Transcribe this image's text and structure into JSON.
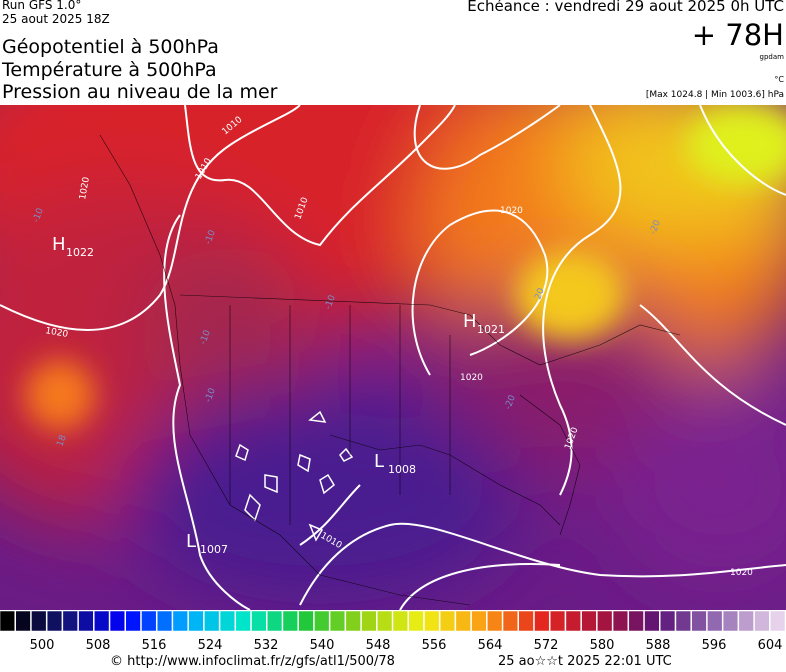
{
  "header": {
    "run": "Run GFS 1.0°",
    "run_date": "25 aout 2025 18Z",
    "titles": [
      "Géopotentiel à 500hPa",
      "Température à 500hPa",
      "Pression au niveau de la mer"
    ],
    "echeance": "Echéance : vendredi 29 aout 2025 0h UTC",
    "lead": "+ 78H",
    "unit_geo": "gpdam",
    "unit_temp": "°C",
    "extremes": "[Max 1024.8 | Min 1003.6] hPa"
  },
  "map": {
    "centers": [
      {
        "letter": "H",
        "value": 1022
      },
      {
        "letter": "H",
        "value": 1021
      },
      {
        "letter": "L",
        "value": 1008
      },
      {
        "letter": "L",
        "value": 1007
      }
    ],
    "isobar_labels": [
      "1010",
      "1010",
      "1020",
      "1020",
      "1020",
      "1020",
      "1010",
      "1020",
      "1020",
      "1010"
    ],
    "temp_labels": [
      "-10",
      "-10",
      "-10",
      "-10",
      "-10",
      "-20",
      "20",
      "-20",
      "18"
    ]
  },
  "scale": {
    "labels": [
      500,
      508,
      516,
      524,
      532,
      540,
      548,
      556,
      564,
      572,
      580,
      588,
      596,
      604
    ]
  },
  "footer": {
    "source": "© http://www.infoclimat.fr/z/gfs/atl1/500/78",
    "timestamp": "25 ao☆☆t 2025 22:01 UTC"
  }
}
